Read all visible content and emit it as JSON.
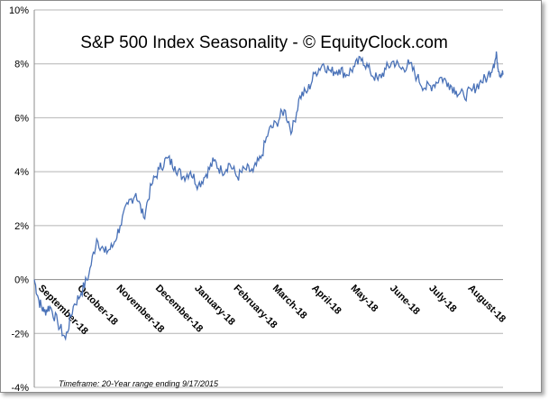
{
  "chart_data": {
    "type": "line",
    "title": "S&P 500 Index Seasonality - © EquityClock.com",
    "footnote": "Timeframe: 20-Year range ending 9/17/2015",
    "y_ticks": [
      "10%",
      "8%",
      "6%",
      "4%",
      "2%",
      "0%",
      "-2%",
      "-4%"
    ],
    "ylim": [
      -4,
      10
    ],
    "y_grid": true,
    "x_ticks": [
      "September-18",
      "October-18",
      "November-18",
      "December-18",
      "January-18",
      "February-18",
      "March-18",
      "April-18",
      "May-18",
      "June-18",
      "July-18",
      "August-18"
    ],
    "series": [
      {
        "color": "#4a72b8",
        "x": [
          0,
          0.12,
          0.25,
          0.4,
          0.6,
          0.8,
          1.0,
          1.2,
          1.4,
          1.6,
          1.8,
          2.0,
          2.2,
          2.4,
          2.6,
          2.8,
          3.0,
          3.2,
          3.4,
          3.6,
          3.8,
          4.0,
          4.2,
          4.4,
          4.6,
          4.8,
          5.0,
          5.2,
          5.4,
          5.6,
          5.8,
          6.0,
          6.2,
          6.4,
          6.6,
          6.8,
          7.0,
          7.2,
          7.4,
          7.6,
          7.8,
          8.0,
          8.2,
          8.4,
          8.6,
          8.8,
          9.0,
          9.2,
          9.4,
          9.6,
          9.8,
          10.0,
          10.2,
          10.4,
          10.6,
          10.8,
          11.0,
          11.2,
          11.4,
          11.6,
          11.76,
          11.84,
          11.9,
          12.0
        ],
        "values": [
          0,
          -0.8,
          -1.2,
          -1.0,
          -1.6,
          -2.2,
          -1.0,
          -0.5,
          0.2,
          1.5,
          1.0,
          1.2,
          2.0,
          2.8,
          3.2,
          2.3,
          3.5,
          4.1,
          4.5,
          4.2,
          3.8,
          4.0,
          3.5,
          3.9,
          4.4,
          4.0,
          4.3,
          3.8,
          4.1,
          4.0,
          4.5,
          5.5,
          5.8,
          6.3,
          5.5,
          6.8,
          7.0,
          7.7,
          8.0,
          7.7,
          7.8,
          7.6,
          7.9,
          8.2,
          7.7,
          7.4,
          7.8,
          8.1,
          7.8,
          8.0,
          7.5,
          7.1,
          7.2,
          7.5,
          7.3,
          7.0,
          6.8,
          7.0,
          7.3,
          7.5,
          8.0,
          8.3,
          7.7,
          7.6
        ]
      }
    ]
  }
}
